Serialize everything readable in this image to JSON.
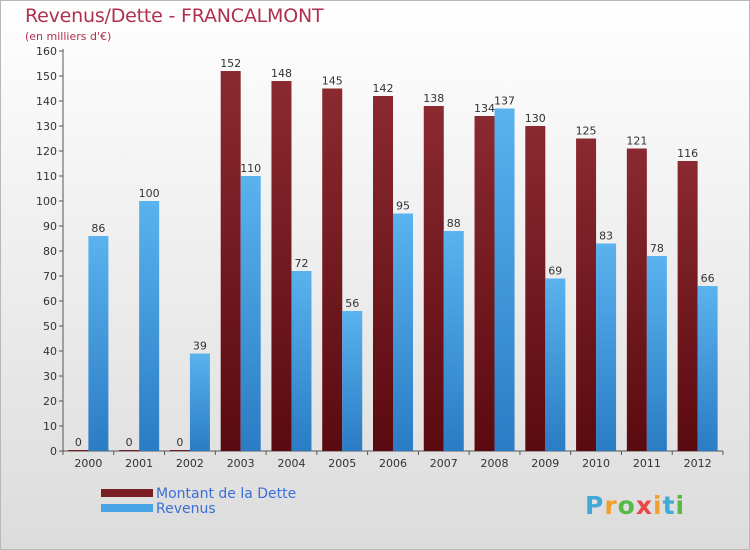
{
  "title": "Revenus/Dette - FRANCALMONT",
  "subtitle": "(en milliers d'€)",
  "colors": {
    "dette": "#7a1e24",
    "revenus": "#4aa3e4",
    "title": "#b03050",
    "legend_text": "#3b6fd6"
  },
  "logo": {
    "letters": [
      "P",
      "r",
      "o",
      "x",
      "i",
      "t",
      "i"
    ],
    "colors": [
      "#3fa9d8",
      "#f0a030",
      "#58b848",
      "#e84848",
      "#f0a030",
      "#3fa9d8",
      "#58b848"
    ]
  },
  "chart_data": {
    "type": "bar",
    "categories": [
      "2000",
      "2001",
      "2002",
      "2003",
      "2004",
      "2005",
      "2006",
      "2007",
      "2008",
      "2009",
      "2010",
      "2011",
      "2012"
    ],
    "series": [
      {
        "name": "Montant de la Dette",
        "values": [
          0,
          0,
          0,
          152,
          148,
          145,
          142,
          138,
          134,
          130,
          125,
          121,
          116
        ]
      },
      {
        "name": "Revenus",
        "values": [
          86,
          100,
          39,
          110,
          72,
          56,
          95,
          88,
          137,
          69,
          83,
          78,
          66
        ]
      }
    ],
    "ylim": [
      0,
      160
    ],
    "yticks": [
      0,
      10,
      20,
      30,
      40,
      50,
      60,
      70,
      80,
      90,
      100,
      110,
      120,
      130,
      140,
      150,
      160
    ],
    "grid": false,
    "legend_position": "bottom-left"
  }
}
